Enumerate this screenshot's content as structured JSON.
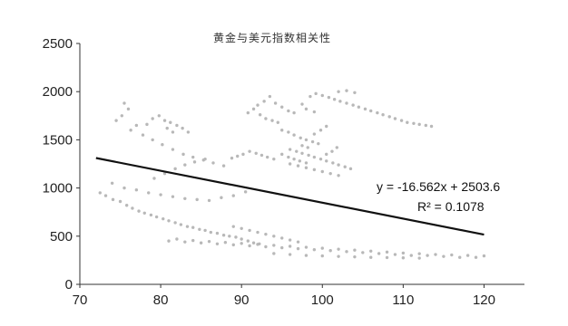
{
  "chart_data": {
    "type": "scatter",
    "title": "黄金与美元指数相关性",
    "xlabel": "",
    "ylabel": "",
    "xlim": [
      70,
      125
    ],
    "ylim": [
      0,
      2500
    ],
    "x_ticks": [
      70,
      80,
      90,
      100,
      110,
      120
    ],
    "y_ticks": [
      0,
      500,
      1000,
      1500,
      2000,
      2500
    ],
    "grid": false,
    "legend": "none",
    "colors": {
      "points": "#b8b8b8",
      "trendline": "#111111",
      "axis": "#333333"
    },
    "trendline": {
      "type": "linear",
      "slope": -16.562,
      "intercept": 2503.6,
      "x_range": [
        72,
        120
      ],
      "equation_label": "y = -16.562x + 2503.6",
      "r2_label": "R² = 0.1078"
    },
    "series": [
      {
        "points": [
          [
            72.5,
            950
          ],
          [
            73.2,
            920
          ],
          [
            74.1,
            880
          ],
          [
            75.0,
            860
          ],
          [
            75.8,
            820
          ],
          [
            76.5,
            790
          ],
          [
            77.3,
            760
          ],
          [
            78.0,
            740
          ],
          [
            78.8,
            720
          ],
          [
            79.5,
            700
          ],
          [
            80.3,
            680
          ],
          [
            81.0,
            660
          ],
          [
            81.8,
            640
          ],
          [
            82.5,
            620
          ],
          [
            83.3,
            600
          ],
          [
            84.0,
            590
          ],
          [
            84.8,
            570
          ],
          [
            85.5,
            560
          ],
          [
            86.2,
            540
          ],
          [
            87.0,
            530
          ],
          [
            87.8,
            510
          ],
          [
            88.5,
            500
          ],
          [
            89.3,
            490
          ],
          [
            90.0,
            470
          ],
          [
            90.8,
            450
          ],
          [
            91.5,
            430
          ],
          [
            92.2,
            420
          ],
          [
            74.0,
            1050
          ],
          [
            75.5,
            1000
          ],
          [
            77.0,
            980
          ],
          [
            78.5,
            950
          ],
          [
            80.0,
            930
          ],
          [
            81.5,
            910
          ],
          [
            83.0,
            890
          ],
          [
            84.5,
            880
          ],
          [
            86.0,
            870
          ],
          [
            87.5,
            900
          ],
          [
            89.0,
            920
          ],
          [
            90.5,
            960
          ],
          [
            79.2,
            1100
          ],
          [
            80.5,
            1150
          ],
          [
            81.8,
            1200
          ],
          [
            83.0,
            1240
          ],
          [
            84.2,
            1270
          ],
          [
            85.5,
            1300
          ],
          [
            74.5,
            1700
          ],
          [
            75.2,
            1750
          ],
          [
            76.0,
            1820
          ],
          [
            75.5,
            1880
          ],
          [
            77.0,
            1650
          ],
          [
            76.3,
            1600
          ],
          [
            77.8,
            1550
          ],
          [
            79.0,
            1500
          ],
          [
            80.2,
            1450
          ],
          [
            81.5,
            1400
          ],
          [
            82.8,
            1350
          ],
          [
            84.0,
            1320
          ],
          [
            85.3,
            1290
          ],
          [
            86.5,
            1260
          ],
          [
            87.8,
            1230
          ],
          [
            79.0,
            1720
          ],
          [
            79.8,
            1750
          ],
          [
            80.5,
            1700
          ],
          [
            81.2,
            1680
          ],
          [
            82.0,
            1650
          ],
          [
            82.7,
            1620
          ],
          [
            83.4,
            1580
          ],
          [
            80.8,
            1620
          ],
          [
            81.5,
            1580
          ],
          [
            78.3,
            1660
          ],
          [
            81.0,
            450
          ],
          [
            83.0,
            440
          ],
          [
            85.0,
            430
          ],
          [
            87.0,
            420
          ],
          [
            89.0,
            410
          ],
          [
            91.0,
            400
          ],
          [
            93.0,
            390
          ],
          [
            95.0,
            380
          ],
          [
            97.0,
            370
          ],
          [
            99.0,
            360
          ],
          [
            101.0,
            350
          ],
          [
            103.0,
            340
          ],
          [
            105.0,
            330
          ],
          [
            107.0,
            320
          ],
          [
            109.0,
            310
          ],
          [
            111.0,
            300
          ],
          [
            113.0,
            300
          ],
          [
            115.0,
            290
          ],
          [
            117.0,
            280
          ],
          [
            119.0,
            280
          ],
          [
            82.0,
            470
          ],
          [
            84.0,
            455
          ],
          [
            86.0,
            445
          ],
          [
            88.0,
            435
          ],
          [
            90.0,
            425
          ],
          [
            92.0,
            415
          ],
          [
            94.0,
            405
          ],
          [
            96.0,
            395
          ],
          [
            98.0,
            385
          ],
          [
            100.0,
            375
          ],
          [
            102.0,
            365
          ],
          [
            104.0,
            355
          ],
          [
            106.0,
            345
          ],
          [
            108.0,
            335
          ],
          [
            110.0,
            325
          ],
          [
            112.0,
            318
          ],
          [
            114.0,
            310
          ],
          [
            116.0,
            305
          ],
          [
            118.0,
            300
          ],
          [
            120.0,
            295
          ],
          [
            94.0,
            320
          ],
          [
            96.0,
            310
          ],
          [
            98.0,
            300
          ],
          [
            100.0,
            295
          ],
          [
            102.0,
            290
          ],
          [
            104.0,
            285
          ],
          [
            106.0,
            280
          ],
          [
            108.0,
            278
          ],
          [
            110.0,
            275
          ],
          [
            112.0,
            272
          ],
          [
            89.0,
            600
          ],
          [
            90.0,
            580
          ],
          [
            91.0,
            560
          ],
          [
            92.0,
            540
          ],
          [
            93.0,
            520
          ],
          [
            94.0,
            500
          ],
          [
            95.0,
            480
          ],
          [
            96.0,
            460
          ],
          [
            97.0,
            440
          ],
          [
            92.0,
            1860
          ],
          [
            92.8,
            1900
          ],
          [
            93.5,
            1950
          ],
          [
            94.2,
            1880
          ],
          [
            95.0,
            1840
          ],
          [
            95.8,
            1800
          ],
          [
            96.5,
            1780
          ],
          [
            91.5,
            1820
          ],
          [
            90.8,
            1780
          ],
          [
            92.3,
            1760
          ],
          [
            93.0,
            1720
          ],
          [
            93.8,
            1700
          ],
          [
            94.5,
            1680
          ],
          [
            98.5,
            1950
          ],
          [
            99.2,
            1980
          ],
          [
            100.0,
            1960
          ],
          [
            100.8,
            1940
          ],
          [
            101.5,
            1920
          ],
          [
            102.2,
            1900
          ],
          [
            103.0,
            1880
          ],
          [
            103.8,
            1860
          ],
          [
            104.5,
            1840
          ],
          [
            105.3,
            1820
          ],
          [
            106.0,
            1800
          ],
          [
            106.8,
            1780
          ],
          [
            107.5,
            1760
          ],
          [
            108.3,
            1740
          ],
          [
            109.0,
            1720
          ],
          [
            109.8,
            1700
          ],
          [
            110.5,
            1680
          ],
          [
            111.3,
            1670
          ],
          [
            112.0,
            1660
          ],
          [
            112.8,
            1650
          ],
          [
            113.5,
            1640
          ],
          [
            102.0,
            2000
          ],
          [
            103.0,
            2010
          ],
          [
            104.0,
            1990
          ],
          [
            97.5,
            1870
          ],
          [
            98.0,
            1820
          ],
          [
            99.0,
            1790
          ],
          [
            95.0,
            1600
          ],
          [
            95.8,
            1580
          ],
          [
            96.5,
            1550
          ],
          [
            97.3,
            1520
          ],
          [
            98.0,
            1500
          ],
          [
            98.8,
            1480
          ],
          [
            99.5,
            1460
          ],
          [
            96.0,
            1400
          ],
          [
            96.8,
            1380
          ],
          [
            97.5,
            1360
          ],
          [
            98.3,
            1340
          ],
          [
            99.0,
            1320
          ],
          [
            99.8,
            1300
          ],
          [
            100.5,
            1280
          ],
          [
            101.3,
            1260
          ],
          [
            102.0,
            1240
          ],
          [
            102.8,
            1220
          ],
          [
            103.5,
            1200
          ],
          [
            95.0,
            1350
          ],
          [
            95.8,
            1320
          ],
          [
            96.5,
            1300
          ],
          [
            97.2,
            1280
          ],
          [
            98.0,
            1260
          ],
          [
            94.0,
            1300
          ],
          [
            93.2,
            1320
          ],
          [
            92.5,
            1340
          ],
          [
            91.8,
            1360
          ],
          [
            91.0,
            1380
          ],
          [
            90.2,
            1350
          ],
          [
            89.5,
            1330
          ],
          [
            88.8,
            1310
          ],
          [
            96.0,
            1250
          ],
          [
            97.0,
            1230
          ],
          [
            98.0,
            1210
          ],
          [
            99.0,
            1190
          ],
          [
            100.0,
            1170
          ],
          [
            101.0,
            1150
          ],
          [
            102.0,
            1130
          ],
          [
            100.5,
            1350
          ],
          [
            101.2,
            1380
          ],
          [
            101.8,
            1420
          ],
          [
            99.0,
            1560
          ],
          [
            99.8,
            1600
          ],
          [
            100.5,
            1640
          ],
          [
            97.5,
            1440
          ],
          [
            98.2,
            1420
          ]
        ]
      }
    ]
  }
}
